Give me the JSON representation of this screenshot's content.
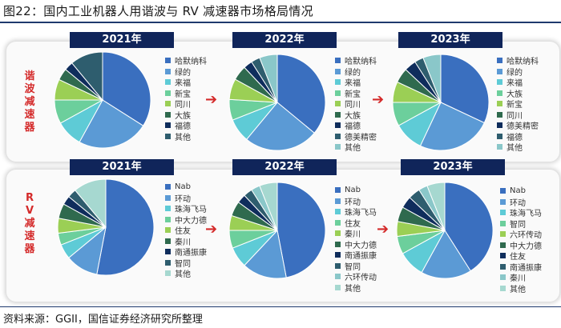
{
  "title": "图22：国内工业机器人用谐波与 RV 减速器市场格局情况",
  "source": "资料来源：GGII，国信证券经济研究所整理",
  "rows": [
    {
      "label": "谐波减速器"
    },
    {
      "label": "RV减速器"
    }
  ],
  "arrow_glyph": "➔",
  "colors": {
    "accent": "#d42a2a",
    "header_bg": "#10255a",
    "palette": [
      "#3a6fbf",
      "#5b9ad5",
      "#5ecbd6",
      "#6ccf9c",
      "#9bcf55",
      "#2f6a4e",
      "#0f2d5c",
      "#2e5d6e",
      "#8ac7c9",
      "#a6d8d0"
    ]
  },
  "chart_data": [
    {
      "type": "pie",
      "year": "2021年",
      "section": "谐波减速器",
      "labels": [
        "哈默纳科",
        "绿的",
        "来福",
        "新宝",
        "同川",
        "大族",
        "福德",
        "其他"
      ],
      "values": [
        34,
        24,
        9,
        8,
        7,
        4,
        3,
        11
      ],
      "color_index": [
        0,
        1,
        2,
        3,
        4,
        5,
        6,
        7
      ]
    },
    {
      "type": "pie",
      "year": "2022年",
      "section": "谐波减速器",
      "labels": [
        "哈默纳科",
        "绿的",
        "来福",
        "新宝",
        "同川",
        "大族",
        "福德",
        "德美精密",
        "其他"
      ],
      "values": [
        36,
        25,
        8,
        7,
        7,
        5,
        3,
        3,
        6
      ],
      "color_index": [
        0,
        1,
        2,
        3,
        4,
        5,
        6,
        7,
        8
      ]
    },
    {
      "type": "pie",
      "year": "2023年",
      "section": "谐波减速器",
      "labels": [
        "哈默纳科",
        "绿的",
        "来福",
        "大族",
        "新宝",
        "同川",
        "德美精密",
        "福德",
        "其他"
      ],
      "values": [
        32,
        25,
        10,
        8,
        7,
        5,
        4,
        3,
        6
      ],
      "color_index": [
        0,
        1,
        2,
        3,
        4,
        5,
        6,
        7,
        8
      ]
    },
    {
      "type": "pie",
      "year": "2021年",
      "section": "RV减速器",
      "labels": [
        "Nab",
        "环动",
        "珠海飞马",
        "中大力德",
        "住友",
        "秦川",
        "南通振康",
        "智同",
        "其他"
      ],
      "values": [
        53,
        11,
        5,
        4,
        5,
        5,
        3,
        3,
        11
      ],
      "color_index": [
        0,
        1,
        2,
        3,
        4,
        5,
        6,
        7,
        9
      ]
    },
    {
      "type": "pie",
      "year": "2022年",
      "section": "RV减速器",
      "labels": [
        "Nab",
        "环动",
        "珠海飞马",
        "住友",
        "秦川",
        "中大力德",
        "南通振康",
        "智同",
        "六环传动",
        "其他"
      ],
      "values": [
        47,
        15,
        7,
        6,
        5,
        5,
        3,
        3,
        3,
        6
      ],
      "color_index": [
        0,
        1,
        2,
        3,
        4,
        5,
        6,
        7,
        8,
        9
      ]
    },
    {
      "type": "pie",
      "year": "2023年",
      "section": "RV减速器",
      "labels": [
        "Nab",
        "环动",
        "珠海飞马",
        "智同",
        "六环传动",
        "中大力德",
        "住友",
        "南通振康",
        "秦川",
        "其他"
      ],
      "values": [
        41,
        17,
        9,
        6,
        5,
        5,
        4,
        4,
        3,
        6
      ],
      "color_index": [
        0,
        1,
        2,
        3,
        4,
        5,
        6,
        7,
        8,
        9
      ]
    }
  ]
}
